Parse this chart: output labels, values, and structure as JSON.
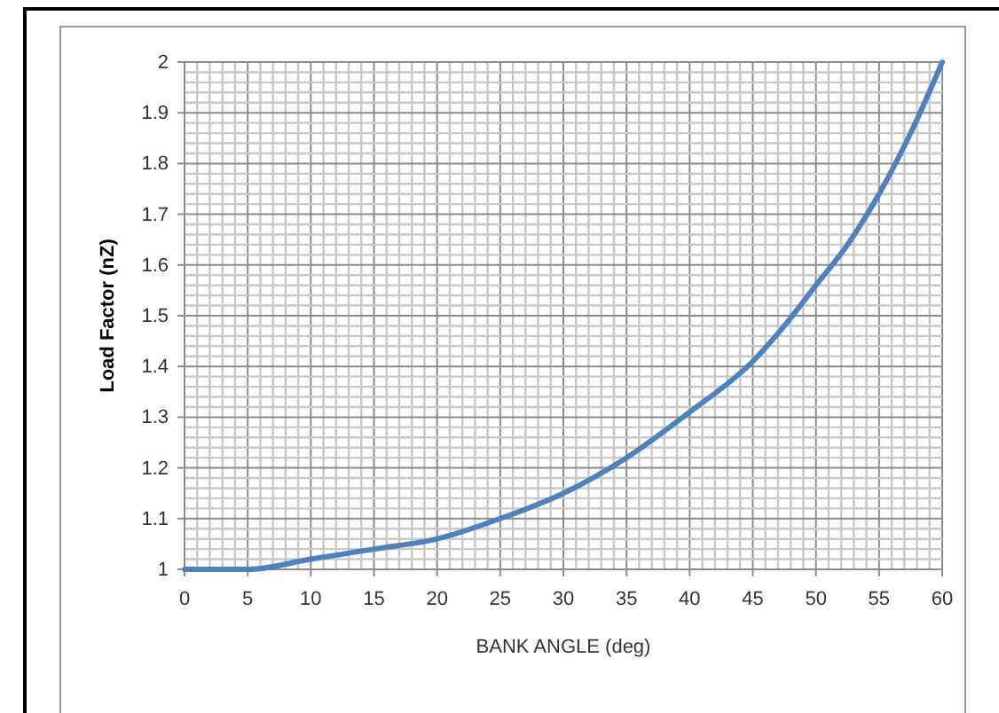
{
  "chart_data": {
    "type": "line",
    "xlabel": "BANK ANGLE (deg)",
    "ylabel": "Load Factor (nZ)",
    "x": [
      0,
      5,
      10,
      15,
      20,
      25,
      30,
      35,
      40,
      45,
      47.5,
      50,
      52.5,
      55,
      57.5,
      60
    ],
    "series": [
      {
        "color": "#4f81bd",
        "values": [
          1,
          1,
          1.02,
          1.04,
          1.06,
          1.1,
          1.15,
          1.22,
          1.31,
          1.41,
          1.48,
          1.56,
          1.64,
          1.74,
          1.86,
          2
        ]
      }
    ],
    "xlim": [
      0,
      60
    ],
    "xticks": [
      0,
      5,
      10,
      15,
      20,
      25,
      30,
      35,
      40,
      45,
      50,
      55,
      60
    ],
    "ylim": [
      1,
      2
    ],
    "yticks": [
      1,
      1.1,
      1.2,
      1.3,
      1.4,
      1.5,
      1.6,
      1.7,
      1.8,
      1.9,
      2
    ],
    "grid": true,
    "marker": "none",
    "line_style": "solid"
  }
}
